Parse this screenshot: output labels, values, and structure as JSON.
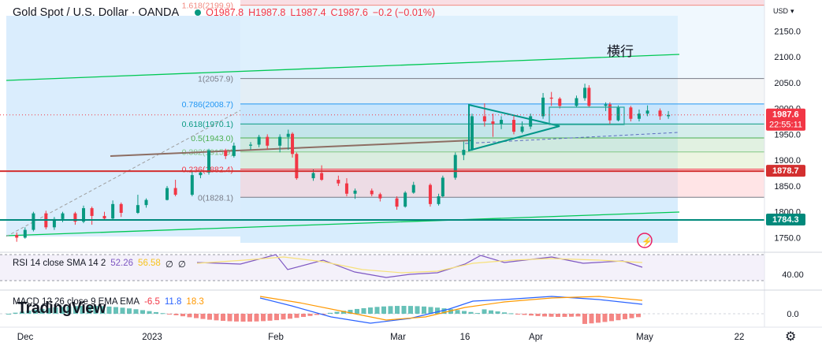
{
  "header": {
    "symbol": "Gold Spot / U.S. Dollar · OANDA",
    "ohlc": {
      "o": "O1987.8",
      "h": "H1987.8",
      "l": "L1987.4",
      "c": "C1987.6",
      "chg": "−0.2 (−0.01%)"
    }
  },
  "currency": "USD",
  "annotation": "横行",
  "watermark": "TradingView",
  "price_axis": {
    "ticks": [
      "2150.0",
      "2100.0",
      "2050.0",
      "2000.0",
      "1950.0",
      "1900.0",
      "1850.0",
      "1800.0",
      "1750.0"
    ],
    "badges": [
      {
        "price": 1987.6,
        "label": "1987.6",
        "sub": "22:55:11",
        "color": "#f23645"
      },
      {
        "price": 1878.7,
        "label": "1878.7",
        "color": "#d32f2f"
      },
      {
        "price": 1784.3,
        "label": "1784.3",
        "color": "#00897b"
      }
    ]
  },
  "time_axis": [
    "Dec",
    "2023",
    "Feb",
    "Mar",
    "16",
    "Apr",
    "May",
    "22"
  ],
  "fib": [
    {
      "ratio": "1.618",
      "price": 2199.9,
      "label": "1.618(2199.9)",
      "color": "#f28b82"
    },
    {
      "ratio": "1",
      "price": 2057.9,
      "label": "1(2057.9)",
      "color": "#787b86"
    },
    {
      "ratio": "0.786",
      "price": 2008.7,
      "label": "0.786(2008.7)",
      "color": "#2196f3"
    },
    {
      "ratio": "0.618",
      "price": 1970.1,
      "label": "0.618(1970.1)",
      "color": "#089981"
    },
    {
      "ratio": "0.5",
      "price": 1943.0,
      "label": "0.5(1943.0)",
      "color": "#4caf50"
    },
    {
      "ratio": "0.382",
      "price": 1915.9,
      "label": "0.382(1915.9)",
      "color": "#81c784"
    },
    {
      "ratio": "0.236",
      "price": 1882.4,
      "label": "0.236(1882.4)",
      "color": "#f23645"
    },
    {
      "ratio": "0",
      "price": 1828.1,
      "label": "0(1828.1)",
      "color": "#787b86"
    }
  ],
  "rsi": {
    "label": "RSI 14 close SMA 14 2",
    "v1": "52.26",
    "v2": "56.58",
    "v3": "∅",
    "v4": "∅",
    "tick": "40.00"
  },
  "macd": {
    "label": "MACD 12 26 close 9 EMA EMA",
    "v1": "-6.5",
    "v2": "11.8",
    "v3": "18.3",
    "tick": "0.0"
  },
  "chart_data": {
    "type": "candlestick",
    "ylim": [
      1740,
      2210
    ],
    "x_range": [
      "2022-11-24",
      "2023-05-26"
    ],
    "candles": [
      [
        "2022-11-28",
        1755,
        1760,
        1742,
        1750
      ],
      [
        "2022-11-30",
        1750,
        1770,
        1748,
        1765
      ],
      [
        "2022-12-02",
        1765,
        1800,
        1762,
        1797
      ],
      [
        "2022-12-05",
        1797,
        1802,
        1766,
        1770
      ],
      [
        "2022-12-07",
        1770,
        1790,
        1765,
        1786
      ],
      [
        "2022-12-09",
        1786,
        1800,
        1780,
        1797
      ],
      [
        "2022-12-12",
        1797,
        1800,
        1775,
        1781
      ],
      [
        "2022-12-14",
        1781,
        1812,
        1778,
        1807
      ],
      [
        "2022-12-16",
        1807,
        1810,
        1775,
        1792
      ],
      [
        "2022-12-19",
        1792,
        1800,
        1785,
        1787
      ],
      [
        "2022-12-21",
        1787,
        1822,
        1785,
        1815
      ],
      [
        "2022-12-23",
        1815,
        1818,
        1790,
        1798
      ],
      [
        "2022-12-27",
        1798,
        1833,
        1796,
        1813
      ],
      [
        "2022-12-29",
        1813,
        1826,
        1808,
        1823
      ],
      [
        "2023-01-03",
        1823,
        1850,
        1822,
        1846
      ],
      [
        "2023-01-05",
        1846,
        1862,
        1830,
        1833
      ],
      [
        "2023-01-09",
        1833,
        1880,
        1830,
        1871
      ],
      [
        "2023-01-11",
        1871,
        1880,
        1865,
        1876
      ],
      [
        "2023-01-13",
        1876,
        1922,
        1872,
        1919
      ],
      [
        "2023-01-17",
        1919,
        1922,
        1902,
        1908
      ],
      [
        "2023-01-19",
        1908,
        1934,
        1905,
        1928
      ],
      [
        "2023-01-23",
        1928,
        1935,
        1920,
        1930
      ],
      [
        "2023-01-25",
        1930,
        1949,
        1925,
        1945
      ],
      [
        "2023-01-27",
        1945,
        1950,
        1920,
        1928
      ],
      [
        "2023-01-30",
        1928,
        1950,
        1915,
        1945
      ],
      [
        "2023-02-01",
        1945,
        1959,
        1920,
        1951
      ],
      [
        "2023-02-02",
        1951,
        1954,
        1905,
        1912
      ],
      [
        "2023-02-03",
        1912,
        1915,
        1862,
        1865
      ],
      [
        "2023-02-07",
        1865,
        1882,
        1860,
        1875
      ],
      [
        "2023-02-09",
        1875,
        1890,
        1860,
        1862
      ],
      [
        "2023-02-13",
        1862,
        1870,
        1850,
        1855
      ],
      [
        "2023-02-15",
        1855,
        1865,
        1830,
        1835
      ],
      [
        "2023-02-17",
        1835,
        1845,
        1825,
        1841
      ],
      [
        "2023-02-21",
        1841,
        1845,
        1830,
        1834
      ],
      [
        "2023-02-23",
        1834,
        1837,
        1820,
        1826
      ],
      [
        "2023-02-27",
        1826,
        1830,
        1804,
        1810
      ],
      [
        "2023-03-01",
        1810,
        1840,
        1808,
        1837
      ],
      [
        "2023-03-03",
        1837,
        1858,
        1835,
        1852
      ],
      [
        "2023-03-07",
        1852,
        1855,
        1810,
        1815
      ],
      [
        "2023-03-09",
        1815,
        1835,
        1812,
        1830
      ],
      [
        "2023-03-10",
        1830,
        1870,
        1828,
        1866
      ],
      [
        "2023-03-13",
        1866,
        1915,
        1862,
        1910
      ],
      [
        "2023-03-15",
        1910,
        1936,
        1900,
        1920
      ],
      [
        "2023-03-17",
        1920,
        1990,
        1918,
        1985
      ],
      [
        "2023-03-20",
        1985,
        2010,
        1965,
        1975
      ],
      [
        "2023-03-22",
        1975,
        1990,
        1945,
        1970
      ],
      [
        "2023-03-24",
        1970,
        1985,
        1960,
        1978
      ],
      [
        "2023-03-27",
        1978,
        1985,
        1950,
        1955
      ],
      [
        "2023-03-29",
        1955,
        1975,
        1952,
        1965
      ],
      [
        "2023-03-31",
        1965,
        1990,
        1960,
        1985
      ],
      [
        "2023-04-03",
        1985,
        2030,
        1980,
        2021
      ],
      [
        "2023-04-05",
        2021,
        2032,
        2005,
        2019
      ],
      [
        "2023-04-07",
        2019,
        2022,
        2000,
        2005
      ],
      [
        "2023-04-11",
        2005,
        2025,
        2002,
        2020
      ],
      [
        "2023-04-13",
        2020,
        2048,
        2015,
        2040
      ],
      [
        "2023-04-14",
        2040,
        2045,
        2003,
        2005
      ],
      [
        "2023-04-18",
        2005,
        2012,
        1995,
        2008
      ],
      [
        "2023-04-19",
        2008,
        2012,
        1970,
        1977
      ],
      [
        "2023-04-21",
        1977,
        2006,
        1975,
        2002
      ],
      [
        "2023-04-24",
        2002,
        2005,
        1975,
        1980
      ],
      [
        "2023-04-26",
        1980,
        1998,
        1975,
        1990
      ],
      [
        "2023-04-28",
        1990,
        2006,
        1985,
        1996
      ],
      [
        "2023-05-01",
        1996,
        2000,
        1978,
        1985
      ],
      [
        "2023-05-03",
        1985,
        1995,
        1980,
        1987.6
      ]
    ]
  }
}
